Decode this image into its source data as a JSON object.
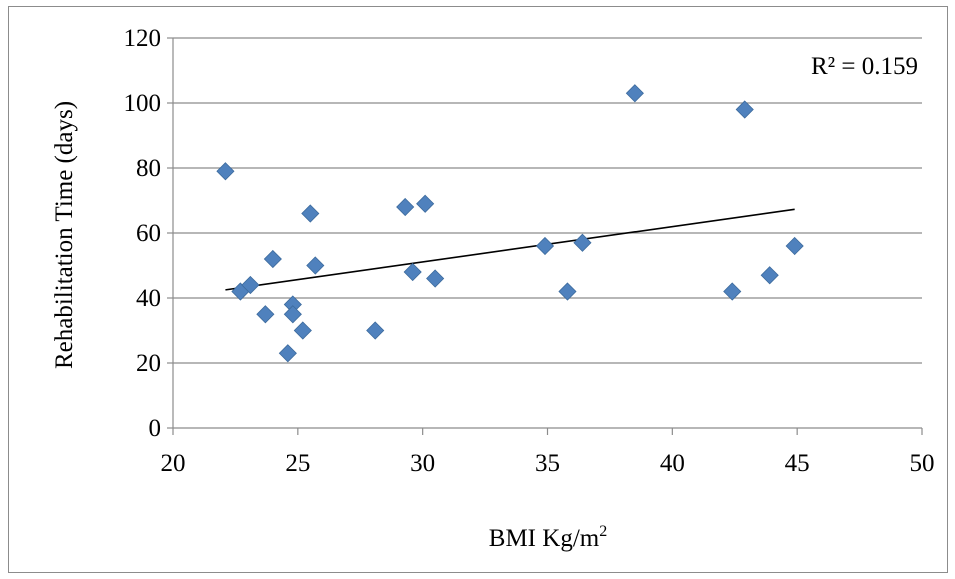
{
  "chart_data": {
    "type": "scatter",
    "title": "",
    "xlabel": "BMI Kg/m",
    "xlabel_superscript": "2",
    "ylabel": "Rehabilitation Time (days)",
    "xlim": [
      20,
      50
    ],
    "ylim": [
      0,
      120
    ],
    "x_ticks": [
      20,
      25,
      30,
      35,
      40,
      45,
      50
    ],
    "y_ticks": [
      0,
      20,
      40,
      60,
      80,
      100,
      120
    ],
    "grid": "horizontal",
    "legend": "none",
    "marker": "diamond",
    "marker_color": "#4f81bd",
    "points": [
      {
        "x": 22.1,
        "y": 79
      },
      {
        "x": 22.7,
        "y": 42
      },
      {
        "x": 23.1,
        "y": 44
      },
      {
        "x": 23.7,
        "y": 35
      },
      {
        "x": 24.0,
        "y": 52
      },
      {
        "x": 24.6,
        "y": 23
      },
      {
        "x": 24.8,
        "y": 38
      },
      {
        "x": 24.8,
        "y": 35
      },
      {
        "x": 25.2,
        "y": 30
      },
      {
        "x": 25.5,
        "y": 66
      },
      {
        "x": 25.7,
        "y": 50
      },
      {
        "x": 28.1,
        "y": 30
      },
      {
        "x": 29.3,
        "y": 68
      },
      {
        "x": 29.6,
        "y": 48
      },
      {
        "x": 30.1,
        "y": 69
      },
      {
        "x": 30.5,
        "y": 46
      },
      {
        "x": 34.9,
        "y": 56
      },
      {
        "x": 35.8,
        "y": 42
      },
      {
        "x": 36.4,
        "y": 57
      },
      {
        "x": 38.5,
        "y": 103
      },
      {
        "x": 42.4,
        "y": 42
      },
      {
        "x": 42.9,
        "y": 98
      },
      {
        "x": 43.9,
        "y": 47
      },
      {
        "x": 44.9,
        "y": 56
      }
    ],
    "trendline": {
      "type": "linear",
      "x_start": 22.1,
      "y_start": 42.5,
      "x_end": 44.9,
      "y_end": 67.3,
      "color": "#000000",
      "r_squared_label": "R² = 0.159"
    }
  }
}
